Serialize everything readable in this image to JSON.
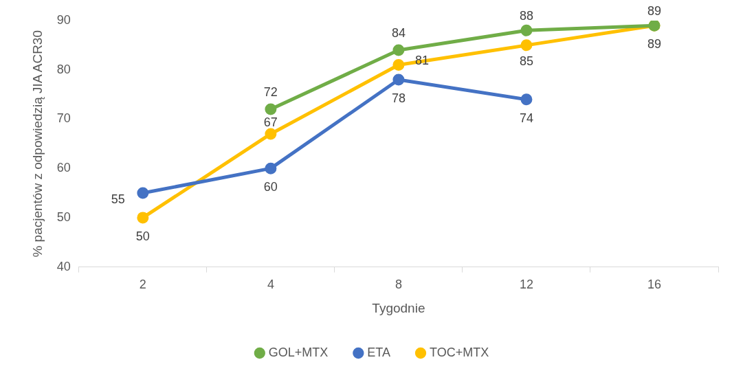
{
  "chart_data": {
    "type": "line",
    "xlabel": "Tygodnie",
    "ylabel": "% pacjentów z odpowiedzią JIA ACR30",
    "categories": [
      "2",
      "4",
      "8",
      "12",
      "16"
    ],
    "series": [
      {
        "name": "GOL+MTX",
        "color": "#70ad47",
        "values": [
          null,
          72,
          84,
          88,
          89
        ]
      },
      {
        "name": "ETA",
        "color": "#4472c4",
        "values": [
          55,
          60,
          78,
          74,
          null
        ]
      },
      {
        "name": "TOC+MTX",
        "color": "#ffc000",
        "values": [
          50,
          67,
          81,
          85,
          89
        ]
      }
    ],
    "ylim": [
      40,
      90
    ],
    "yticks": [
      40,
      50,
      60,
      70,
      80,
      90
    ],
    "grid": false,
    "legend": "bottom",
    "marker": "circle",
    "line_style": "solid",
    "data_labels": true
  }
}
